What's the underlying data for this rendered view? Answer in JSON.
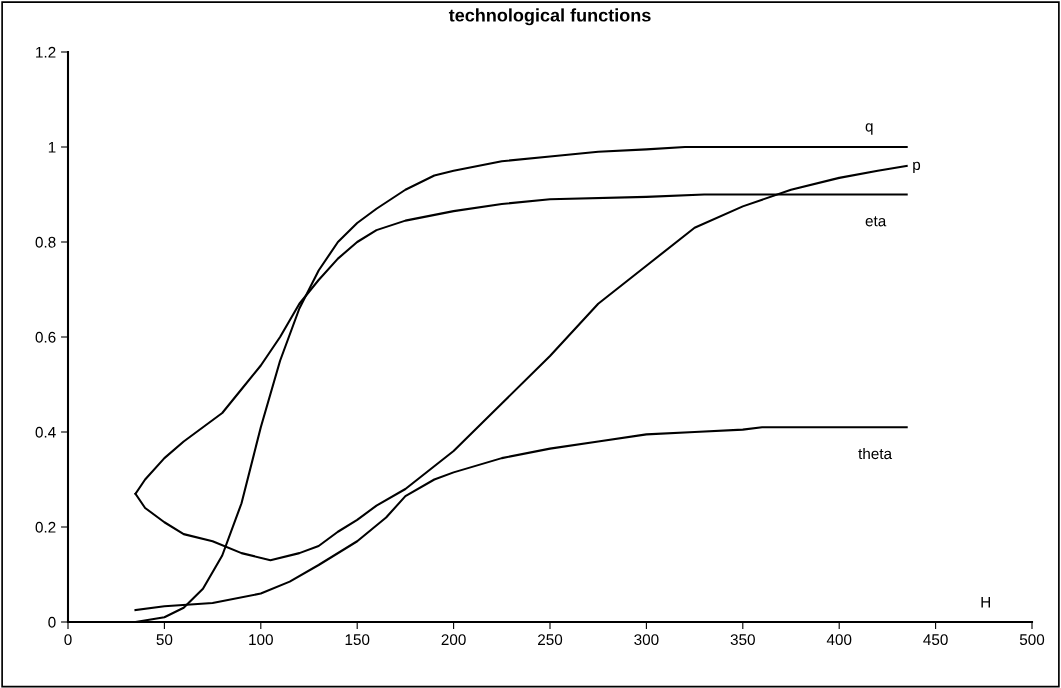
{
  "chart_data": {
    "type": "line",
    "title": "technological functions",
    "xlabel": "H",
    "xlim": [
      0,
      500
    ],
    "xticks": [
      0,
      50,
      100,
      150,
      200,
      250,
      300,
      350,
      400,
      450,
      500
    ],
    "ylim": [
      0,
      1.2
    ],
    "yticks": [
      0,
      0.2,
      0.4,
      0.6,
      0.8,
      1,
      1.2
    ],
    "grid": false,
    "legend": false,
    "marker": "none",
    "line_style": "solid",
    "series": [
      {
        "name": "q",
        "color": "#000000",
        "x": [
          35,
          50,
          60,
          70,
          80,
          90,
          100,
          110,
          120,
          130,
          140,
          150,
          160,
          175,
          190,
          200,
          225,
          250,
          275,
          300,
          320,
          435
        ],
        "values": [
          0.0,
          0.01,
          0.03,
          0.07,
          0.14,
          0.25,
          0.41,
          0.55,
          0.66,
          0.74,
          0.8,
          0.84,
          0.87,
          0.91,
          0.94,
          0.95,
          0.97,
          0.98,
          0.99,
          0.995,
          1.0,
          1.0
        ]
      },
      {
        "name": "p",
        "color": "#000000",
        "x": [
          35,
          40,
          50,
          60,
          75,
          90,
          105,
          120,
          130,
          140,
          150,
          160,
          175,
          200,
          225,
          250,
          275,
          300,
          325,
          350,
          375,
          400,
          420,
          435
        ],
        "values": [
          0.27,
          0.24,
          0.21,
          0.185,
          0.17,
          0.145,
          0.13,
          0.145,
          0.16,
          0.19,
          0.215,
          0.245,
          0.28,
          0.36,
          0.46,
          0.56,
          0.67,
          0.75,
          0.83,
          0.875,
          0.91,
          0.935,
          0.95,
          0.96
        ]
      },
      {
        "name": "eta",
        "color": "#000000",
        "x": [
          35,
          40,
          50,
          60,
          70,
          80,
          90,
          100,
          110,
          120,
          130,
          140,
          150,
          160,
          175,
          200,
          225,
          250,
          300,
          330,
          435
        ],
        "values": [
          0.27,
          0.3,
          0.345,
          0.38,
          0.41,
          0.44,
          0.49,
          0.54,
          0.6,
          0.67,
          0.72,
          0.765,
          0.8,
          0.825,
          0.845,
          0.865,
          0.88,
          0.89,
          0.895,
          0.9,
          0.9
        ]
      },
      {
        "name": "theta",
        "color": "#000000",
        "x": [
          35,
          50,
          75,
          100,
          115,
          130,
          150,
          165,
          175,
          190,
          200,
          225,
          250,
          275,
          300,
          325,
          350,
          360,
          435
        ],
        "values": [
          0.025,
          0.033,
          0.04,
          0.06,
          0.085,
          0.12,
          0.17,
          0.22,
          0.265,
          0.3,
          0.315,
          0.345,
          0.365,
          0.38,
          0.395,
          0.4,
          0.405,
          0.41,
          0.41
        ]
      }
    ]
  }
}
